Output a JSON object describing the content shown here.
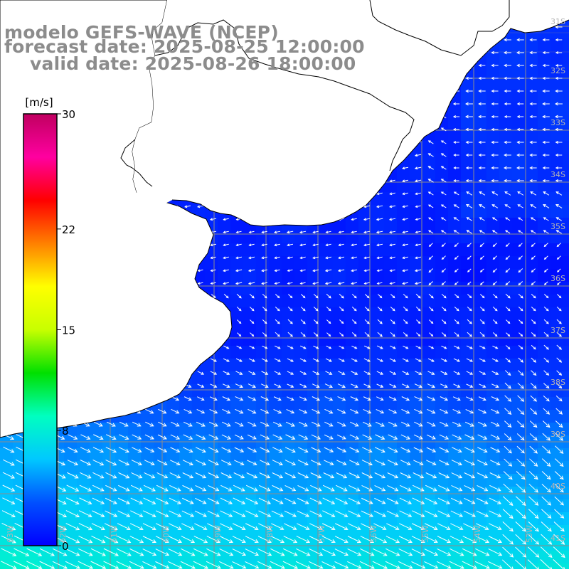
{
  "header": {
    "line1": "modelo GEFS-WAVE (NCEP)",
    "line2": "forecast date: 2025-08-25 12:00:00",
    "line3": "valid date: 2025-08-26 18:00:00"
  },
  "colorbar": {
    "unit": "[m/s]",
    "ticks": [
      "30",
      "22",
      "15",
      "8",
      "0"
    ],
    "min": 0,
    "max": 30,
    "stops": [
      "#0000ff",
      "#0050ff",
      "#00c8ff",
      "#00ffc0",
      "#00e000",
      "#c8ff00",
      "#ffff00",
      "#ff8000",
      "#ff0000",
      "#ff00a0",
      "#c00060"
    ]
  },
  "latitude_labels": [
    "31S",
    "32S",
    "33S",
    "34S",
    "35S",
    "36S",
    "37S",
    "38S",
    "39S",
    "40S",
    "41S"
  ],
  "longitude_labels": [
    "63W",
    "62W",
    "61W",
    "60W",
    "59W",
    "58W",
    "57W",
    "56W",
    "55W",
    "54W",
    "53W"
  ],
  "colors": {
    "land": "#ffffff",
    "coast": "#000000",
    "grid": "#8c8c8c",
    "arrow": "#ffffff",
    "title": "#8c8c8c"
  }
}
